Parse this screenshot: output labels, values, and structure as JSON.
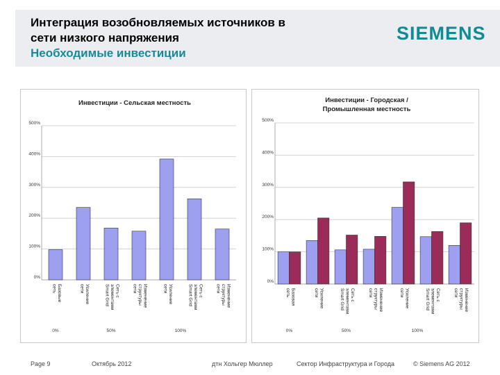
{
  "header": {
    "title_line1": "Интеграция возобновляемых источников в",
    "title_line2": "сети низкого напряжения",
    "subtitle": "Необходимые инвестиции",
    "logo": "SIEMENS"
  },
  "footer": {
    "page": "Page 9",
    "date": "Октябрь 2012",
    "author": "дтн Хольгер Мюллер",
    "sector": "Сектор Инфраструктура и Города",
    "copyright": "© Siemens AG 2012"
  },
  "colors": {
    "blue": "#9d9ff0",
    "maroon": "#9b2c5a",
    "brand": "#0f8b96"
  },
  "chart_data": [
    {
      "type": "bar",
      "title": "Инвестиции - Сельская местность",
      "ylim": [
        0,
        5
      ],
      "yticks": [
        "0%",
        "100%",
        "200%",
        "300%",
        "400%",
        "500%"
      ],
      "categories": [
        "Базовые сеть",
        "Усиление сети",
        "Сеть с элементами Smart Grid",
        "Изменение структуры сети",
        "Усиление сети",
        "Сеть с элементами Smart Grid",
        "Изменение структуры сети"
      ],
      "series": [
        {
          "values": [
            0.98,
            2.35,
            1.68,
            1.58,
            3.92,
            2.63,
            1.65
          ]
        }
      ],
      "group_labels": [
        "0%",
        "50%",
        "100%"
      ],
      "grid": true
    },
    {
      "type": "bar",
      "title": "Инвестиции - Городская / Промышленная местность",
      "ylim": [
        0,
        5
      ],
      "yticks": [
        "0%",
        "100%",
        "200%",
        "300%",
        "400%",
        "500%"
      ],
      "categories": [
        "Базовая сеть",
        "Усиление сети",
        "Сеть с элементами Smart Grid",
        "Изменение структуры сети",
        "Усиление сети",
        "Сеть с элементами Smart Grid",
        "Изменение структуры сети"
      ],
      "series": [
        {
          "values": [
            1.0,
            1.35,
            1.06,
            1.08,
            2.38,
            1.47,
            1.2
          ]
        },
        {
          "values": [
            1.0,
            2.05,
            1.52,
            1.48,
            3.17,
            1.63,
            1.9
          ]
        }
      ],
      "group_labels": [
        "0%",
        "50%",
        "100%"
      ],
      "grid": true
    }
  ]
}
